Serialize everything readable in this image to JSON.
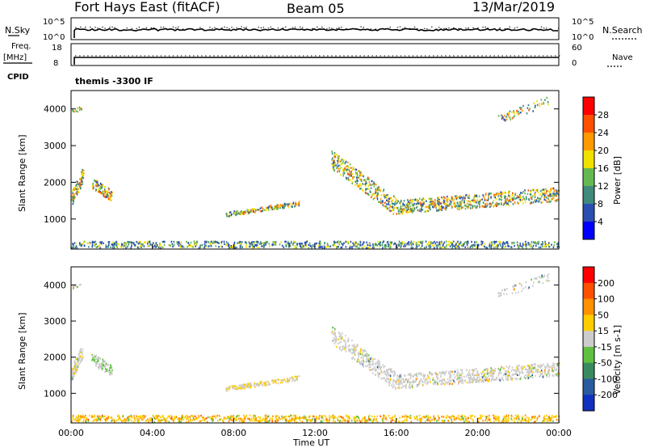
{
  "header": {
    "radar": "Fort Hays East (fitACF)",
    "beam": "Beam 05",
    "date": "13/Mar/2019"
  },
  "control_panel": {
    "nsky_label": "N.Sky",
    "nsky_ticks": [
      "10^5",
      "10^0"
    ],
    "nsearch_label": "N.Search",
    "nsearch_ticks": [
      "10^5",
      "10^0"
    ],
    "freq_label": "Freq.",
    "freq_unit": "[MHz]",
    "freq_ticks": [
      "18",
      "8"
    ],
    "nave_label": "Nave",
    "nave_ticks": [
      "60",
      "0"
    ],
    "cpid_label": "CPID",
    "cpid_text": "themis -3300 IF"
  },
  "chart_data": [
    {
      "type": "heatmap",
      "name": "power-panel",
      "xlabel": "",
      "ylabel": "Slant Range [km]",
      "x_ticks": [
        "00:00",
        "04:00",
        "08:00",
        "12:00",
        "16:00",
        "20:00",
        "00:00"
      ],
      "x_range_hours": [
        0,
        24
      ],
      "y_ticks": [
        1000,
        2000,
        3000,
        4000
      ],
      "ylim": [
        180,
        4500
      ],
      "colorbar_label": "Power [dB]",
      "colorbar_ticks": [
        "4",
        "8",
        "12",
        "16",
        "20",
        "24",
        "28"
      ],
      "colorbar_range": [
        0,
        30
      ],
      "colorbar_colors": [
        "#0000ff",
        "#2a4fb0",
        "#3f8a7a",
        "#66b850",
        "#f0e000",
        "#ff9900",
        "#ff5000",
        "#ff0000"
      ]
    },
    {
      "type": "heatmap",
      "name": "velocity-panel",
      "xlabel": "Time UT",
      "ylabel": "Slant Range [km]",
      "x_ticks": [
        "00:00",
        "04:00",
        "08:00",
        "12:00",
        "16:00",
        "20:00",
        "00:00"
      ],
      "x_range_hours": [
        0,
        24
      ],
      "y_ticks": [
        1000,
        2000,
        3000,
        4000
      ],
      "ylim": [
        180,
        4500
      ],
      "colorbar_label": "Velocity [m s-1]",
      "colorbar_ticks": [
        "200",
        "100",
        "50",
        "15",
        "-15",
        "-50",
        "-100",
        "-200"
      ],
      "colorbar_range": [
        -250,
        250
      ],
      "colorbar_colors": [
        "#1030c0",
        "#2a5aa0",
        "#3a8a60",
        "#60c040",
        "#cccccc",
        "#ffcc00",
        "#ff9000",
        "#ff5000",
        "#ff0000"
      ]
    }
  ]
}
